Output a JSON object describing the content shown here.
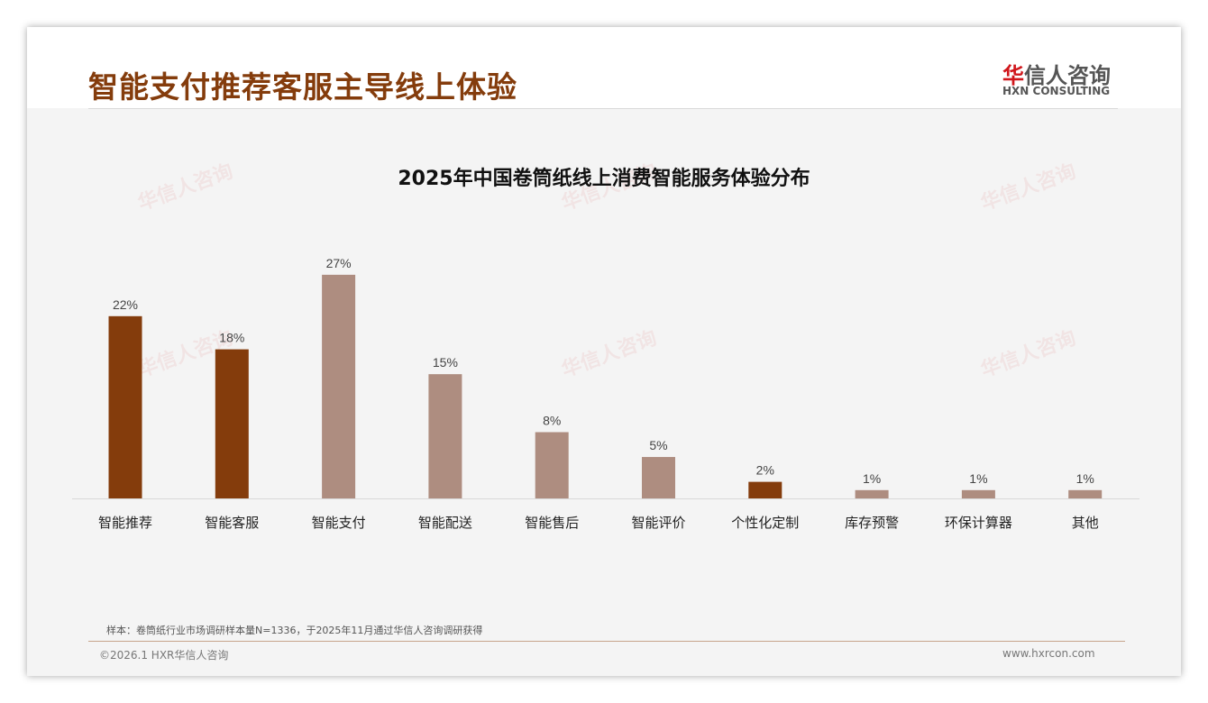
{
  "header": {
    "title": "智能支付推荐客服主导线上体验",
    "logo_cn_red": "华",
    "logo_cn": "信人咨询",
    "logo_en": "HXN CONSULTING"
  },
  "chart_data": {
    "type": "bar",
    "title": "2025年中国卷筒纸线上消费智能服务体验分布",
    "categories": [
      "智能推荐",
      "智能客服",
      "智能支付",
      "智能配送",
      "智能售后",
      "智能评价",
      "个性化定制",
      "库存预警",
      "环保计算器",
      "其他"
    ],
    "values": [
      22,
      18,
      27,
      15,
      8,
      5,
      2,
      1,
      1,
      1
    ],
    "labels": [
      "22%",
      "18%",
      "27%",
      "15%",
      "8%",
      "5%",
      "2%",
      "1%",
      "1%",
      "1%"
    ],
    "highlight": [
      true,
      true,
      false,
      false,
      false,
      false,
      true,
      false,
      false,
      false
    ],
    "colors": {
      "highlight": "#843c0c",
      "normal": "#ae8d80"
    },
    "xlabel": "",
    "ylabel": "",
    "ylim": [
      0,
      30
    ],
    "grid": false,
    "legend": "none"
  },
  "footer": {
    "note": "样本：卷筒纸行业市场调研样本量N=1336，于2025年11月通过华信人咨询调研获得",
    "copyright": "©2026.1 HXR华信人咨询",
    "website": "www.hxrcon.com"
  }
}
